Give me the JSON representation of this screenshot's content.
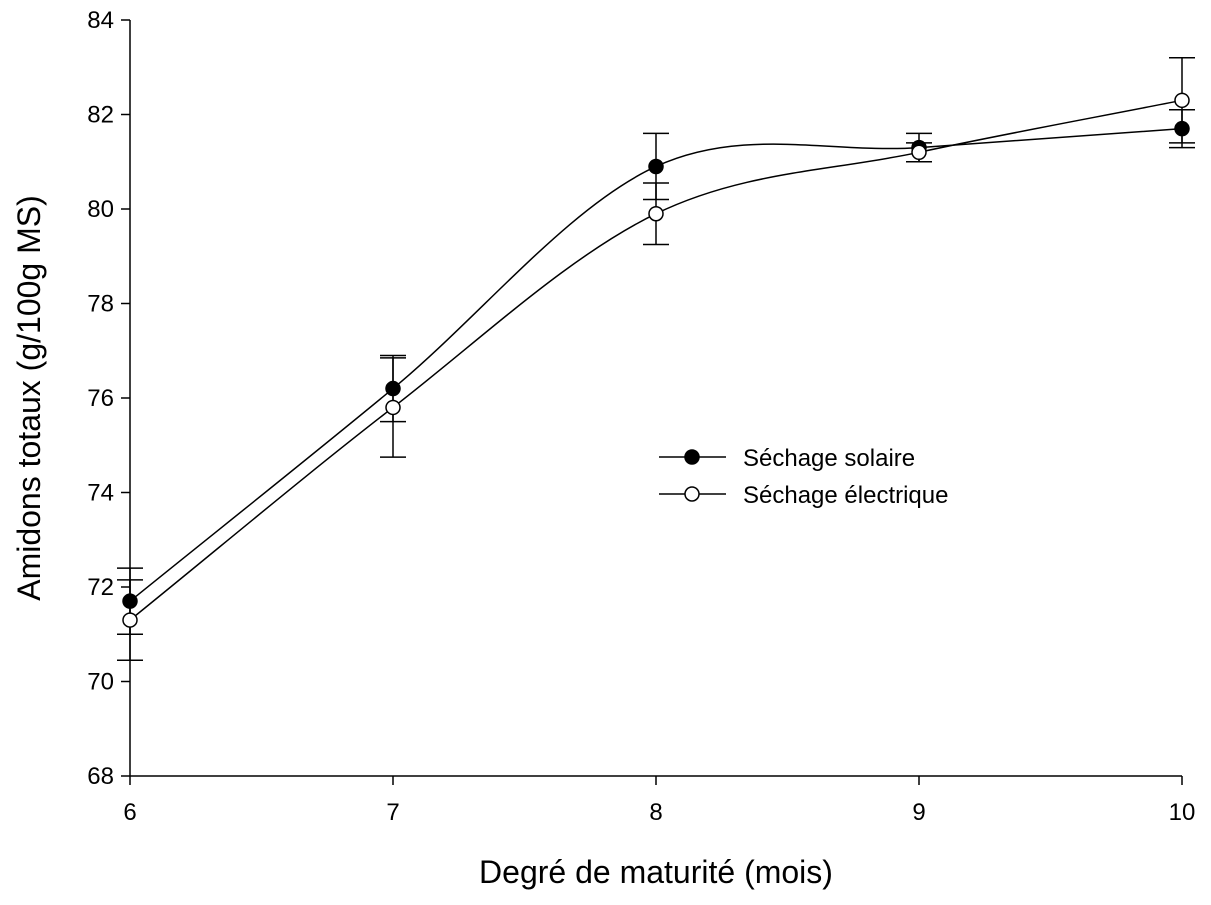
{
  "chart_data": {
    "type": "line",
    "xlabel": "Degré de maturité (mois)",
    "ylabel": "Amidons totaux (g/100g MS)",
    "x": [
      6,
      7,
      8,
      9,
      10
    ],
    "xlim": [
      6,
      10
    ],
    "ylim": [
      68,
      84
    ],
    "xticks": [
      6,
      7,
      8,
      9,
      10
    ],
    "yticks": [
      68,
      70,
      72,
      74,
      76,
      78,
      80,
      82,
      84
    ],
    "grid": false,
    "legend_position": "center-right",
    "series": [
      {
        "name": "Séchage solaire",
        "marker": "filled-circle",
        "values": [
          71.7,
          76.2,
          80.9,
          81.3,
          81.7
        ],
        "error": [
          0.7,
          0.7,
          0.7,
          0.3,
          0.4
        ]
      },
      {
        "name": "Séchage électrique",
        "marker": "open-circle",
        "values": [
          71.3,
          75.8,
          79.9,
          81.2,
          82.3
        ],
        "error": [
          0.85,
          1.05,
          0.65,
          0.2,
          0.9
        ]
      }
    ]
  }
}
